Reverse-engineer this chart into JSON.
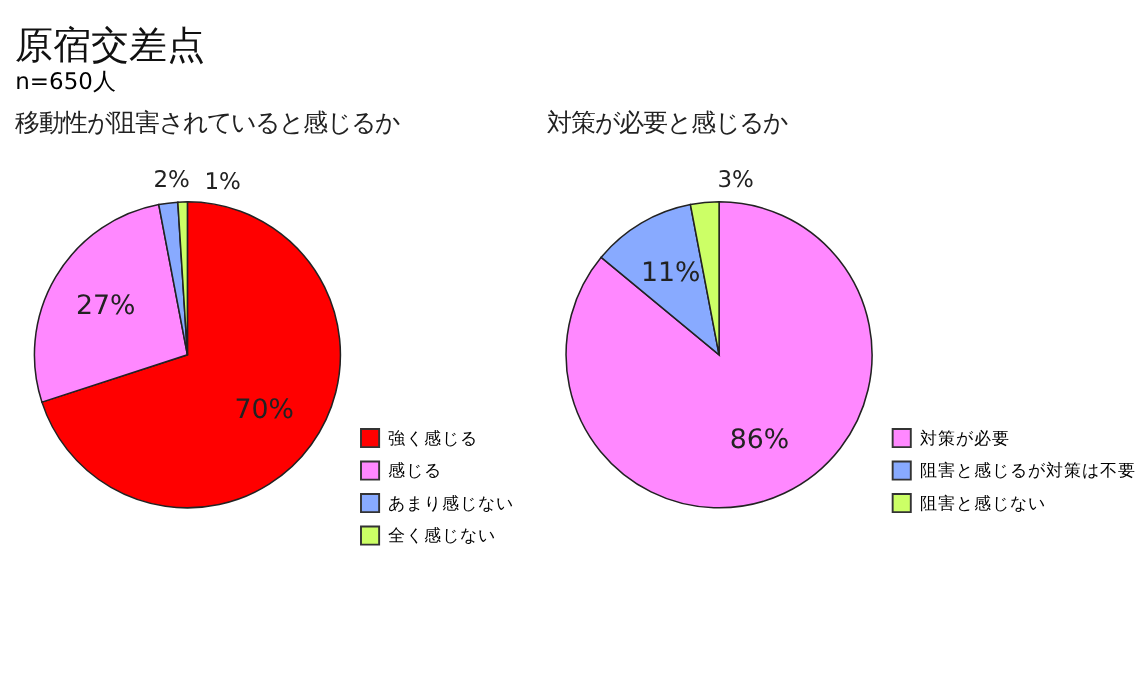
{
  "chart_data": [
    {
      "type": "pie",
      "title": "移動性が阻害されていると感じるか",
      "annotations": [
        "原宿交差点",
        "n=650人"
      ],
      "categories": [
        "強く感じる",
        "感じる",
        "あまり感じない",
        "全く感じない"
      ],
      "values": [
        70,
        27,
        2,
        1
      ],
      "colors": [
        "#ff0000",
        "#ff88ff",
        "#88aaff",
        "#ccff66"
      ],
      "value_labels": [
        "70%",
        "27%",
        "2%",
        "1%"
      ],
      "legend": "bottom right"
    },
    {
      "type": "pie",
      "title": "対策が必要と感じるか",
      "categories": [
        "対策が必要",
        "阻害と感じるが対策は不要",
        "阻害と感じない"
      ],
      "values": [
        86,
        11,
        3
      ],
      "colors": [
        "#ff88ff",
        "#88aaff",
        "#ccff66"
      ],
      "value_labels": [
        "86%",
        "11%",
        "3%"
      ],
      "legend": "bottom right"
    }
  ]
}
